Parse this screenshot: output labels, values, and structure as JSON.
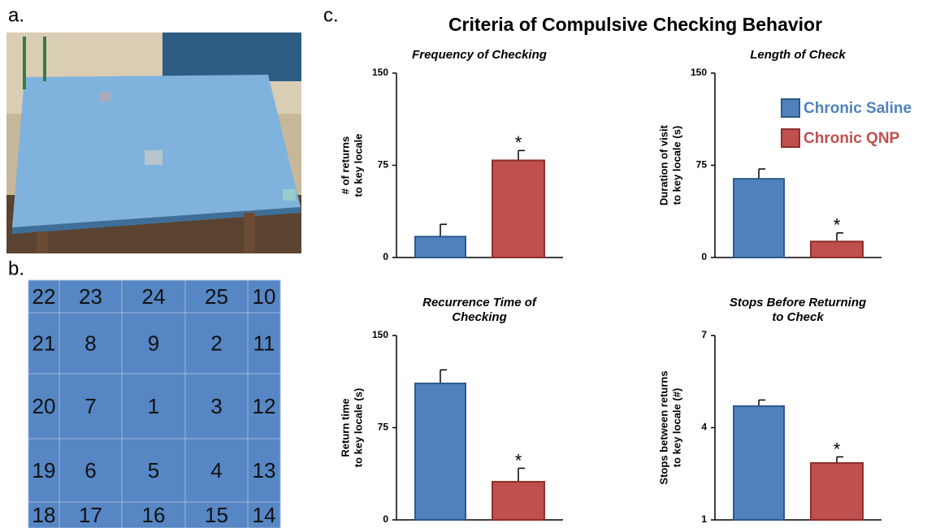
{
  "panel_labels": [
    "a.",
    "b.",
    "c."
  ],
  "figure_title": "Criteria of Compulsive Checking Behavior",
  "grid": {
    "rows": [
      [
        "22",
        "23",
        "24",
        "25",
        "10"
      ],
      [
        "21",
        "8",
        "9",
        "2",
        "11"
      ],
      [
        "20",
        "7",
        "1",
        "3",
        "12"
      ],
      [
        "19",
        "6",
        "5",
        "4",
        "13"
      ],
      [
        "18",
        "17",
        "16",
        "15",
        "14"
      ]
    ]
  },
  "chart_data": [
    {
      "type": "bar",
      "title": [
        "Frequency of Checking"
      ],
      "ylabel": [
        "# of returns",
        "to key locale"
      ],
      "ylim": [
        0,
        150
      ],
      "yticks": [
        0,
        75,
        150
      ],
      "significance": "*",
      "series": [
        {
          "color": "#4f81bd",
          "values": [
            17
          ],
          "errors": [
            10
          ]
        },
        {
          "color": "#c0504d",
          "values": [
            79
          ],
          "errors": [
            8
          ]
        }
      ]
    },
    {
      "type": "bar",
      "title": [
        "Length of Check"
      ],
      "ylabel": [
        "Duration of visit",
        "to key locale (s)"
      ],
      "ylim": [
        0,
        150
      ],
      "yticks": [
        0,
        75,
        150
      ],
      "significance": "*",
      "legend": "upper right",
      "series": [
        {
          "name": "Chronic Saline",
          "color": "#4f81bd",
          "values": [
            64
          ],
          "errors": [
            8
          ]
        },
        {
          "name": "Chronic QNP",
          "color": "#c0504d",
          "values": [
            13
          ],
          "errors": [
            7
          ]
        }
      ]
    },
    {
      "type": "bar",
      "title": [
        "Recurrence Time of",
        "Checking"
      ],
      "ylabel": [
        "Return time",
        "to key locale (s)"
      ],
      "ylim": [
        0,
        150
      ],
      "yticks": [
        0,
        75,
        150
      ],
      "significance": "*",
      "series": [
        {
          "color": "#4f81bd",
          "values": [
            111
          ],
          "errors": [
            11
          ]
        },
        {
          "color": "#c0504d",
          "values": [
            31
          ],
          "errors": [
            11
          ]
        }
      ]
    },
    {
      "type": "bar",
      "title": [
        "Stops Before Returning",
        "to Check"
      ],
      "ylabel": [
        "Stops between returns",
        "to key locale (#)"
      ],
      "ylim": [
        1,
        7
      ],
      "yticks": [
        1,
        4,
        7
      ],
      "significance": "*",
      "series": [
        {
          "color": "#4f81bd",
          "values": [
            4.7
          ],
          "errors": [
            0.2
          ]
        },
        {
          "color": "#c0504d",
          "values": [
            2.85
          ],
          "errors": [
            0.2
          ]
        }
      ]
    }
  ]
}
